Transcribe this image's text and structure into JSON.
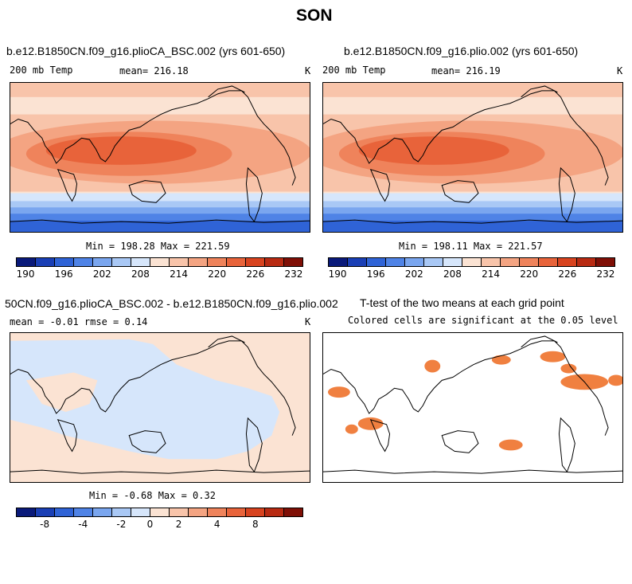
{
  "figure_title": "SON",
  "panel1": {
    "title": "b.e12.B1850CN.f09_g16.plioCA_BSC.002 (yrs 601-650)",
    "left_label": "200 mb Temp",
    "mean_label": "mean= 216.18",
    "units": "K",
    "minmax": "Min = 198.28 Max = 221.59"
  },
  "panel2": {
    "title": "b.e12.B1850CN.f09_g16.plio.002 (yrs 601-650)",
    "left_label": "200 mb Temp",
    "mean_label": "mean= 216.19",
    "units": "K",
    "minmax": "Min = 198.11 Max = 221.57"
  },
  "panel3": {
    "title": "50CN.f09_g16.plioCA_BSC.002 - b.e12.B1850CN.f09_g16.plio.002",
    "stats_label": "mean =  -0.01    rmse =    0.14",
    "units": "K",
    "minmax": "Min = -0.68 Max =    0.32"
  },
  "panel4": {
    "title": "T-test of the two means at each grid point",
    "subtitle": "Colored cells are significant at the 0.05 level"
  },
  "colorbar_abs": {
    "colors": [
      "#0a1a7a",
      "#1a3fb5",
      "#2f63d6",
      "#4f83e6",
      "#7aa6ef",
      "#a9c8f5",
      "#d6e6fb",
      "#fbe3d3",
      "#f8c4aa",
      "#f4a482",
      "#ef835b",
      "#e8633a",
      "#d8431f",
      "#b82a12",
      "#7f0f06"
    ],
    "ticks": [
      "190",
      "196",
      "202",
      "208",
      "214",
      "220",
      "226",
      "232"
    ]
  },
  "colorbar_diff": {
    "colors": [
      "#0a1a7a",
      "#1a3fb5",
      "#2f63d6",
      "#4f83e6",
      "#7aa6ef",
      "#a9c8f5",
      "#d6e6fb",
      "#fbe3d3",
      "#f8c4aa",
      "#f4a482",
      "#ef835b",
      "#e8633a",
      "#d8431f",
      "#b82a12",
      "#7f0f06"
    ],
    "ticks": [
      "-8",
      "-4",
      "-2",
      "0",
      "2",
      "4",
      "8"
    ]
  },
  "map_colors": {
    "warm_core": "#e8633a",
    "warm_mid": "#f4a482",
    "warm_light": "#f8c4aa",
    "warm_pale": "#fbe3d3",
    "cool_pale": "#d6e6fb",
    "cool_light": "#a9c8f5",
    "cool_mid": "#7aa6ef",
    "cool_deep": "#4f83e6",
    "cool_deepest": "#2f63d6",
    "sig": "#f08040"
  }
}
